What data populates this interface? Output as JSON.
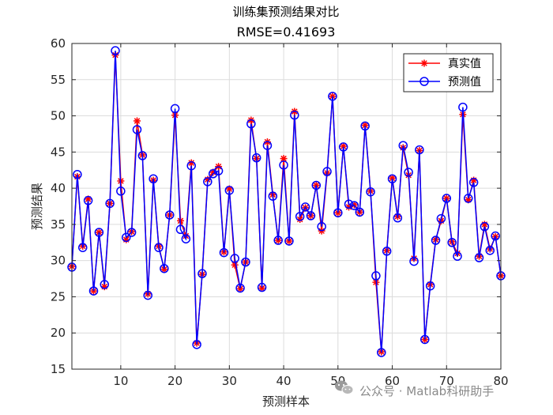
{
  "watermark": {
    "text": "公众号 · Matlab科研助手",
    "icon": "wechat-icon"
  },
  "chart_data": {
    "type": "line",
    "title": "训练集预测结果对比",
    "subtitle": "RMSE=0.41693",
    "xlabel": "预测样本",
    "ylabel": "预测结果",
    "xlim": [
      1,
      80
    ],
    "ylim": [
      15,
      60
    ],
    "xticks": [
      10,
      20,
      30,
      40,
      50,
      60,
      70,
      80
    ],
    "yticks": [
      15,
      20,
      25,
      30,
      35,
      40,
      45,
      50,
      55,
      60
    ],
    "grid": true,
    "legend_position": "top-right",
    "x": [
      1,
      2,
      3,
      4,
      5,
      6,
      7,
      8,
      9,
      10,
      11,
      12,
      13,
      14,
      15,
      16,
      17,
      18,
      19,
      20,
      21,
      22,
      23,
      24,
      25,
      26,
      27,
      28,
      29,
      30,
      31,
      32,
      33,
      34,
      35,
      36,
      37,
      38,
      39,
      40,
      41,
      42,
      43,
      44,
      45,
      46,
      47,
      48,
      49,
      50,
      51,
      52,
      53,
      54,
      55,
      56,
      57,
      58,
      59,
      60,
      61,
      62,
      63,
      64,
      65,
      66,
      67,
      68,
      69,
      70,
      71,
      72,
      73,
      74,
      75,
      76,
      77,
      78,
      79,
      80
    ],
    "series": [
      {
        "name": "真实值",
        "color": "#ff0000",
        "marker": "asterisk",
        "values": [
          29.2,
          41.6,
          32.0,
          38.5,
          25.8,
          33.9,
          26.4,
          37.9,
          58.4,
          41.0,
          32.9,
          34.0,
          49.3,
          44.6,
          25.4,
          41.1,
          32.0,
          28.8,
          36.3,
          50.1,
          35.5,
          33.4,
          43.5,
          18.6,
          28.1,
          41.2,
          42.2,
          43.0,
          31.2,
          39.9,
          29.4,
          26.1,
          29.8,
          49.4,
          44.1,
          26.2,
          46.4,
          39.1,
          32.8,
          44.1,
          32.7,
          50.6,
          35.7,
          37.3,
          36.2,
          40.4,
          34.1,
          42.1,
          52.7,
          36.6,
          45.8,
          37.4,
          37.7,
          36.7,
          48.7,
          39.6,
          27.0,
          17.4,
          31.4,
          41.4,
          36.1,
          45.6,
          41.8,
          30.3,
          45.2,
          19.1,
          26.7,
          32.9,
          35.5,
          38.6,
          32.6,
          31.0,
          50.2,
          38.4,
          41.1,
          30.6,
          35.0,
          31.6,
          33.3,
          27.9
        ]
      },
      {
        "name": "预测值",
        "color": "#0000ff",
        "marker": "circle",
        "values": [
          29.1,
          41.9,
          31.8,
          38.3,
          25.8,
          33.9,
          26.7,
          37.9,
          59.0,
          39.6,
          33.2,
          33.9,
          48.1,
          44.5,
          25.2,
          41.3,
          31.8,
          28.9,
          36.3,
          51.0,
          34.3,
          33.0,
          43.1,
          18.4,
          28.2,
          40.9,
          42.0,
          42.4,
          31.1,
          39.7,
          30.3,
          26.2,
          29.8,
          48.9,
          44.2,
          26.3,
          45.9,
          38.9,
          32.8,
          43.2,
          32.7,
          50.1,
          36.1,
          37.4,
          36.2,
          40.4,
          34.7,
          42.3,
          52.7,
          36.6,
          45.7,
          37.8,
          37.6,
          36.7,
          48.6,
          39.5,
          27.9,
          17.3,
          31.3,
          41.3,
          35.9,
          45.9,
          42.2,
          29.9,
          45.3,
          19.1,
          26.5,
          32.8,
          35.8,
          38.6,
          32.5,
          30.6,
          51.2,
          38.6,
          40.8,
          30.4,
          34.7,
          31.4,
          33.4,
          27.9
        ]
      }
    ]
  }
}
